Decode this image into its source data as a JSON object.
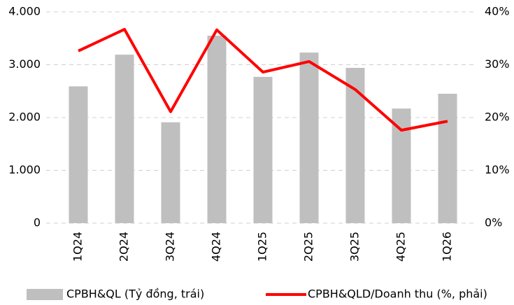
{
  "chart_data": {
    "type": "bar_line",
    "categories": [
      "1Q24",
      "2Q24",
      "3Q24",
      "4Q24",
      "1Q25",
      "2Q25",
      "3Q25",
      "4Q25",
      "1Q26"
    ],
    "series": [
      {
        "name": "CPBH&QL (Tỷ đồng, trái)",
        "color": "#bfbfbf",
        "type": "bar",
        "values": [
          2590,
          3190,
          1910,
          3550,
          2770,
          3230,
          2940,
          2170,
          2450
        ]
      },
      {
        "name": "CPBH&QLD/Doanh thu (%, phải)",
        "color": "#ff0000",
        "type": "line",
        "axis": "y2",
        "values": [
          32.6,
          36.7,
          21.1,
          36.6,
          28.6,
          30.6,
          25.3,
          17.6,
          19.3
        ]
      }
    ],
    "ylim": [
      0,
      4000
    ],
    "yticks": [
      0,
      {
        "value": 1000,
        "label": "1.000"
      },
      {
        "value": 2000,
        "label": "2.000"
      },
      {
        "value": 3000,
        "label": "3.000"
      },
      {
        "value": 4000,
        "label": "4.000"
      }
    ],
    "y2lim": [
      0,
      40
    ],
    "y2ticks": [
      {
        "value": 0,
        "label": "0%"
      },
      {
        "value": 10,
        "label": "10%"
      },
      {
        "value": 20,
        "label": "20%"
      },
      {
        "value": 30,
        "label": "30%"
      },
      {
        "value": 40,
        "label": "40%"
      }
    ],
    "grid": true,
    "legend": "bottom"
  }
}
